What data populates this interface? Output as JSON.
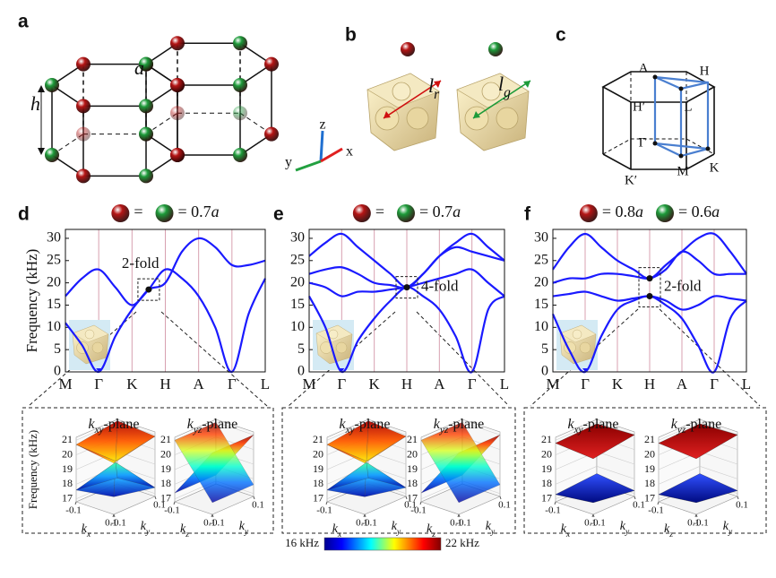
{
  "figure": {
    "panel_labels": [
      "a",
      "b",
      "c",
      "d",
      "e",
      "f"
    ],
    "lattice": {
      "height": "h",
      "constant": "a",
      "axes": [
        "z",
        "y",
        "x"
      ]
    },
    "cells": [
      {
        "base": "l",
        "sub": "r"
      },
      {
        "base": "l",
        "sub": "g"
      }
    ],
    "bz_points": [
      "A",
      "H",
      "H′",
      "L",
      "Γ",
      "K′",
      "M",
      "K"
    ]
  },
  "chart_data": [
    {
      "type": "line",
      "legend_items": [
        {
          "color": "#b51515",
          "text": "="
        },
        {
          "color": "#1d9b3a",
          "text": "= 0.7",
          "unit": "a"
        }
      ],
      "y_label": "Frequency (kHz)",
      "x": [
        0,
        0.5,
        1,
        1.5,
        2,
        2.5,
        3,
        3.5,
        4,
        4.5,
        5,
        5.5,
        6
      ],
      "xlim": [
        0,
        6
      ],
      "xticks": [
        {
          "value": 0,
          "label": "M"
        },
        {
          "value": 1,
          "label": "Γ"
        },
        {
          "value": 2,
          "label": "K"
        },
        {
          "value": 3,
          "label": "H"
        },
        {
          "value": 4,
          "label": "A"
        },
        {
          "value": 5,
          "label": "Γ"
        },
        {
          "value": 6,
          "label": "L"
        }
      ],
      "ylim": [
        0,
        32
      ],
      "yticks": [
        0,
        5,
        10,
        15,
        20,
        25,
        30
      ],
      "series": [
        {
          "color": "#1a1aff",
          "values": [
            11,
            6,
            0,
            8,
            14,
            18.5,
            23,
            21,
            17,
            10,
            0,
            13,
            21
          ]
        },
        {
          "color": "#1a1aff",
          "values": [
            17,
            21,
            23,
            19,
            15,
            18.5,
            20,
            27,
            30,
            28,
            24,
            24,
            25
          ]
        }
      ],
      "annotation": {
        "text": "2-fold",
        "points": [
          [
            2.5,
            18.5
          ]
        ]
      }
    },
    {
      "type": "line",
      "legend_items": [
        {
          "color": "#b51515",
          "text": "="
        },
        {
          "color": "#1d9b3a",
          "text": "= 0.7",
          "unit": "a"
        }
      ],
      "x": [
        0,
        0.5,
        1,
        1.5,
        2,
        2.5,
        3,
        3.5,
        4,
        4.5,
        5,
        5.5,
        6
      ],
      "xlim": [
        0,
        6
      ],
      "xticks": [
        {
          "value": 0,
          "label": "M"
        },
        {
          "value": 1,
          "label": "Γ"
        },
        {
          "value": 2,
          "label": "K"
        },
        {
          "value": 3,
          "label": "H"
        },
        {
          "value": 4,
          "label": "A"
        },
        {
          "value": 5,
          "label": "Γ"
        },
        {
          "value": 6,
          "label": "L"
        }
      ],
      "ylim": [
        0,
        32
      ],
      "yticks": [
        0,
        5,
        10,
        15,
        20,
        25,
        30
      ],
      "series": [
        {
          "color": "#1a1aff",
          "values": [
            17,
            10,
            0,
            7,
            12,
            16,
            19,
            17,
            14,
            8,
            0,
            14,
            17
          ]
        },
        {
          "color": "#1a1aff",
          "values": [
            20,
            19,
            17,
            18,
            18,
            18.5,
            19,
            20,
            21,
            22,
            23,
            20,
            17
          ]
        },
        {
          "color": "#1a1aff",
          "values": [
            22,
            23,
            23.5,
            22,
            20,
            19.5,
            19,
            22,
            26,
            29,
            31,
            28,
            25
          ]
        },
        {
          "color": "#1a1aff",
          "values": [
            26,
            29,
            31,
            28,
            25,
            22,
            19,
            22,
            26,
            28,
            27,
            26,
            25
          ]
        }
      ],
      "annotation": {
        "text": "4-fold",
        "points": [
          [
            3,
            19
          ]
        ]
      }
    },
    {
      "type": "line",
      "legend_items": [
        {
          "color": "#b51515",
          "text": "= 0.8",
          "unit": "a"
        },
        {
          "color": "#1d9b3a",
          "text": "= 0.6",
          "unit": "a"
        }
      ],
      "x": [
        0,
        0.5,
        1,
        1.5,
        2,
        2.5,
        3,
        3.5,
        4,
        4.5,
        5,
        5.5,
        6
      ],
      "xlim": [
        0,
        6
      ],
      "xticks": [
        {
          "value": 0,
          "label": "M"
        },
        {
          "value": 1,
          "label": "Γ"
        },
        {
          "value": 2,
          "label": "K"
        },
        {
          "value": 3,
          "label": "H"
        },
        {
          "value": 4,
          "label": "A"
        },
        {
          "value": 5,
          "label": "Γ"
        },
        {
          "value": 6,
          "label": "L"
        }
      ],
      "ylim": [
        0,
        32
      ],
      "yticks": [
        0,
        5,
        10,
        15,
        20,
        25,
        30
      ],
      "series": [
        {
          "color": "#1a1aff",
          "values": [
            13,
            5,
            0,
            8,
            14,
            16,
            17,
            15,
            12,
            6,
            0,
            12,
            16
          ]
        },
        {
          "color": "#1a1aff",
          "values": [
            17,
            17.5,
            18,
            17,
            16,
            16.5,
            17,
            16,
            14,
            15,
            17,
            16.5,
            16
          ]
        },
        {
          "color": "#1a1aff",
          "values": [
            20,
            21,
            21,
            22,
            22,
            21.5,
            21,
            23,
            27,
            25,
            22,
            22,
            22
          ]
        },
        {
          "color": "#1a1aff",
          "values": [
            23,
            28,
            31,
            28,
            25,
            23,
            21,
            24,
            27,
            30,
            31,
            27,
            22
          ]
        }
      ],
      "annotation": {
        "text": "2-fold",
        "points": [
          [
            3,
            21
          ],
          [
            3,
            17
          ]
        ]
      }
    }
  ],
  "surface_panels": [
    {
      "y_label": "Frequency (kHz)",
      "plots": [
        {
          "title": {
            "k": "k",
            "sub": "xy",
            "rest": "-plane"
          },
          "axis_a": {
            "k": "k",
            "sub": "x"
          },
          "axis_b": {
            "k": "k",
            "sub": "y"
          },
          "alim": [
            -0.1,
            0.1
          ],
          "blim": [
            -0.1,
            0.1
          ],
          "ticks_a": [
            -0.1,
            0.1
          ],
          "ticks_b": [
            -0.1,
            0.1
          ],
          "zlim": [
            16.8,
            21.2
          ],
          "zticks": [
            17,
            18,
            19,
            20,
            21
          ]
        },
        {
          "title": {
            "k": "k",
            "sub": "yz",
            "rest": "-plane"
          },
          "axis_a": {
            "k": "k",
            "sub": "z"
          },
          "axis_b": {
            "k": "k",
            "sub": "y"
          },
          "alim": [
            -0.1,
            0.1
          ],
          "blim": [
            -0.1,
            0.1
          ],
          "ticks_a": [
            -0.1,
            0.1
          ],
          "ticks_b": [
            -0.1,
            0.1
          ],
          "zlim": [
            16.8,
            21.2
          ],
          "zticks": [
            17,
            18,
            19,
            20,
            21
          ]
        }
      ]
    },
    {
      "plots": [
        {
          "title": {
            "k": "k",
            "sub": "xy",
            "rest": "-plane"
          },
          "axis_a": {
            "k": "k",
            "sub": "x"
          },
          "axis_b": {
            "k": "k",
            "sub": "y"
          },
          "alim": [
            -0.1,
            0.1
          ],
          "blim": [
            -0.1,
            0.1
          ],
          "ticks_a": [
            -0.1,
            0.1
          ],
          "ticks_b": [
            -0.1,
            0.1
          ],
          "zlim": [
            16.8,
            21.2
          ],
          "zticks": [
            17,
            18,
            19,
            20,
            21
          ]
        },
        {
          "title": {
            "k": "k",
            "sub": "yz",
            "rest": "-plane"
          },
          "axis_a": {
            "k": "k",
            "sub": "z"
          },
          "axis_b": {
            "k": "k",
            "sub": "y"
          },
          "alim": [
            -0.1,
            0.1
          ],
          "blim": [
            -0.1,
            0.1
          ],
          "ticks_a": [
            -0.1,
            0.1
          ],
          "ticks_b": [
            -0.1,
            0.1
          ],
          "zlim": [
            16.8,
            21.2
          ],
          "zticks": [
            17,
            18,
            19,
            20,
            21
          ]
        }
      ]
    },
    {
      "plots": [
        {
          "title": {
            "k": "k",
            "sub": "xy",
            "rest": "-plane"
          },
          "axis_a": {
            "k": "k",
            "sub": "x"
          },
          "axis_b": {
            "k": "k",
            "sub": "y"
          },
          "alim": [
            -0.1,
            0.1
          ],
          "blim": [
            -0.1,
            0.1
          ],
          "ticks_a": [
            -0.1,
            0.1
          ],
          "ticks_b": [
            -0.1,
            0.1
          ],
          "zlim": [
            16.8,
            21.2
          ],
          "zticks": [
            17,
            18,
            19,
            20,
            21
          ]
        },
        {
          "title": {
            "k": "k",
            "sub": "yz",
            "rest": "-plane"
          },
          "axis_a": {
            "k": "k",
            "sub": "z"
          },
          "axis_b": {
            "k": "k",
            "sub": "y"
          },
          "alim": [
            -0.1,
            0.1
          ],
          "blim": [
            -0.1,
            0.1
          ],
          "ticks_a": [
            -0.1,
            0.1
          ],
          "ticks_b": [
            -0.1,
            0.1
          ],
          "zlim": [
            16.8,
            21.2
          ],
          "zticks": [
            17,
            18,
            19,
            20,
            21
          ]
        }
      ]
    }
  ],
  "colorbar": {
    "min_label": "16 kHz",
    "max_label": "22 kHz"
  }
}
